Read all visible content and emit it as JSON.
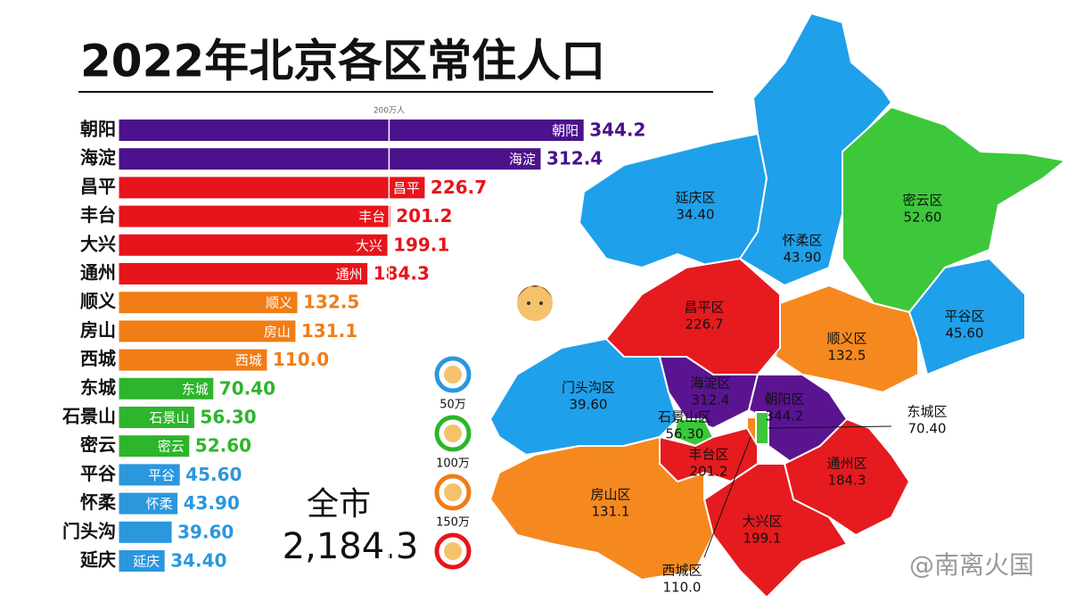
{
  "chart_data": {
    "type": "hbar",
    "title": "2022年北京各区常住人口",
    "categories": [
      "朝阳",
      "海淀",
      "昌平",
      "丰台",
      "大兴",
      "通州",
      "顺义",
      "房山",
      "西城",
      "东城",
      "石景山",
      "密云",
      "平谷",
      "怀柔",
      "门头沟",
      "延庆"
    ],
    "values": [
      344.2,
      312.4,
      226.7,
      201.2,
      199.1,
      184.3,
      132.5,
      131.1,
      110.0,
      70.4,
      56.3,
      52.6,
      45.6,
      43.9,
      39.6,
      34.4
    ],
    "value_labels": [
      "344.2",
      "312.4",
      "226.7",
      "201.2",
      "199.1",
      "184.3",
      "132.5",
      "131.1",
      "110.0",
      "70.40",
      "56.30",
      "52.60",
      "45.60",
      "43.90",
      "39.60",
      "34.40"
    ],
    "inner_labels": [
      "朝阳",
      "海淀",
      "昌平",
      "丰台",
      "大兴",
      "通州",
      "顺义",
      "房山",
      "西城",
      "东城",
      "石景山",
      "密云",
      "平谷",
      "怀柔",
      null,
      "延庆"
    ],
    "colors": [
      "#4b128c",
      "#4b128c",
      "#e8141b",
      "#e8141b",
      "#e8141b",
      "#e8141b",
      "#f07d16",
      "#f07d16",
      "#f07d16",
      "#2db52b",
      "#2db52b",
      "#2db52b",
      "#2b97dd",
      "#2b97dd",
      "#2b97dd",
      "#2b97dd"
    ],
    "xlim": [
      0,
      350
    ],
    "xticks": [
      {
        "value": 200,
        "label": "200万人"
      }
    ],
    "legend": {
      "colors": [
        "#2b97dd",
        "#2db52b",
        "#f07d16",
        "#e8141b"
      ],
      "labels": [
        "50万",
        "100万",
        "150万"
      ]
    }
  },
  "total": {
    "label": "全市",
    "value": {
      "value": 2184.3,
      "label": "2,184.3"
    }
  },
  "map": {
    "regions": [
      {
        "name": "延庆区",
        "value": "34.40"
      },
      {
        "name": "怀柔区",
        "value": "43.90"
      },
      {
        "name": "密云区",
        "value": "52.60"
      },
      {
        "name": "平谷区",
        "value": "45.60"
      },
      {
        "name": "昌平区",
        "value": "226.7"
      },
      {
        "name": "顺义区",
        "value": "132.5"
      },
      {
        "name": "门头沟区",
        "value": "39.60"
      },
      {
        "name": "海淀区",
        "value": "312.4"
      },
      {
        "name": "朝阳区",
        "value": "344.2"
      },
      {
        "name": "石景山区",
        "value": "56.30"
      },
      {
        "name": "东城区",
        "value": "70.40"
      },
      {
        "name": "丰台区",
        "value": "201.2"
      },
      {
        "name": "通州区",
        "value": "184.3"
      },
      {
        "name": "房山区",
        "value": "131.1"
      },
      {
        "name": "大兴区",
        "value": "199.1"
      },
      {
        "name": "西城区",
        "value": "110.0"
      }
    ]
  },
  "watermark": "@南离火国"
}
